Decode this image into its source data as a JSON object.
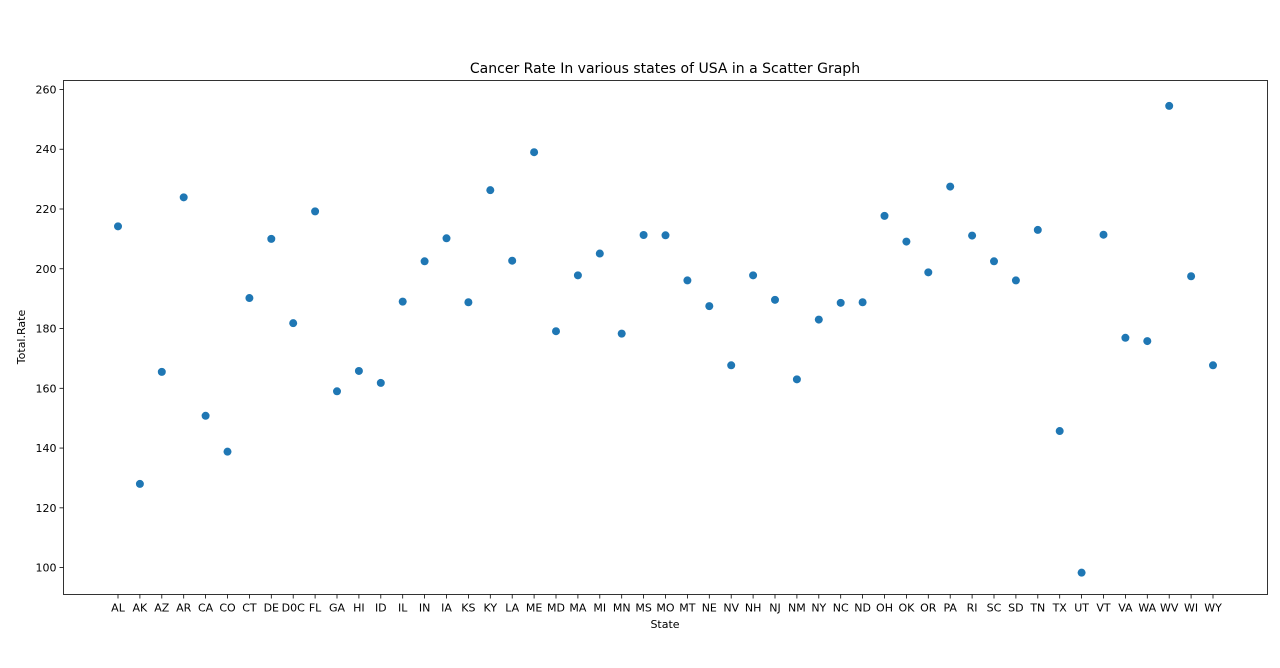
{
  "chart_data": {
    "type": "scatter",
    "title": "Cancer Rate In various states of USA in a Scatter Graph",
    "xlabel": "State",
    "ylabel": "Total.Rate",
    "ylim": [
      91,
      263
    ],
    "yticks": [
      100,
      120,
      140,
      160,
      180,
      200,
      220,
      240,
      260
    ],
    "grid": false,
    "marker_color": "#1f77b4",
    "categories": [
      "AL",
      "AK",
      "AZ",
      "AR",
      "CA",
      "CO",
      "CT",
      "DE",
      "D0C",
      "FL",
      "GA",
      "HI",
      "ID",
      "IL",
      "IN",
      "IA",
      "KS",
      "KY",
      "LA",
      "ME",
      "MD",
      "MA",
      "MI",
      "MN",
      "MS",
      "MO",
      "MT",
      "NE",
      "NV",
      "NH",
      "NJ",
      "NM",
      "NY",
      "NC",
      "ND",
      "OH",
      "OK",
      "OR",
      "PA",
      "RI",
      "SC",
      "SD",
      "TN",
      "TX",
      "UT",
      "VT",
      "VA",
      "WA",
      "WV",
      "WI",
      "WY"
    ],
    "values": [
      214.2,
      128.0,
      165.5,
      223.9,
      150.8,
      138.8,
      190.2,
      210.0,
      181.8,
      219.2,
      159.0,
      165.8,
      161.8,
      189.0,
      202.5,
      210.2,
      188.8,
      226.3,
      202.7,
      239.0,
      179.1,
      197.8,
      205.1,
      178.3,
      211.3,
      211.2,
      196.1,
      187.5,
      167.7,
      197.8,
      189.6,
      163.0,
      183.0,
      188.6,
      188.8,
      217.7,
      209.1,
      198.8,
      227.5,
      211.1,
      202.5,
      196.1,
      213.0,
      145.7,
      98.3,
      211.4,
      176.9,
      175.8,
      254.5,
      197.5,
      167.7
    ]
  }
}
